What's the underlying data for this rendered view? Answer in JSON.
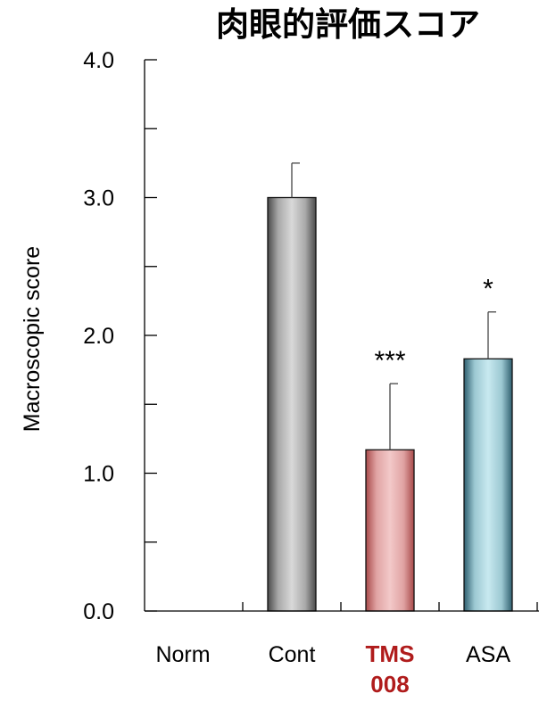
{
  "chart_data": {
    "type": "bar",
    "title": "肉眼的評価スコア",
    "ylabel": "Macroscopic score",
    "ylim": [
      0,
      4.0
    ],
    "yticks": [
      "0.0",
      "1.0",
      "2.0",
      "3.0",
      "4.0"
    ],
    "categories": [
      {
        "lines": [
          "Norm"
        ],
        "highlight": false
      },
      {
        "lines": [
          "Cont"
        ],
        "highlight": false
      },
      {
        "lines": [
          "TMS",
          "008"
        ],
        "highlight": true
      },
      {
        "lines": [
          "ASA"
        ],
        "highlight": false
      }
    ],
    "values": [
      0,
      3.0,
      1.17,
      1.83
    ],
    "errors": [
      0,
      0.25,
      0.48,
      0.34
    ],
    "significance": [
      "",
      "",
      "***",
      "*"
    ],
    "grid": false,
    "bar_colors": [
      {
        "dark": "#444444",
        "light": "#d4d4d4",
        "mid": "#9a9a9a"
      },
      {
        "dark": "#4a4a4a",
        "light": "#d9d9d9",
        "mid": "#a9a9a9"
      },
      {
        "dark": "#a84a4a",
        "light": "#f3c9c9",
        "mid": "#e0a3a3"
      },
      {
        "dark": "#2f5f6f",
        "light": "#c8e9f0",
        "mid": "#9cc8d2"
      }
    ],
    "highlight_color": "#b01c1c"
  }
}
